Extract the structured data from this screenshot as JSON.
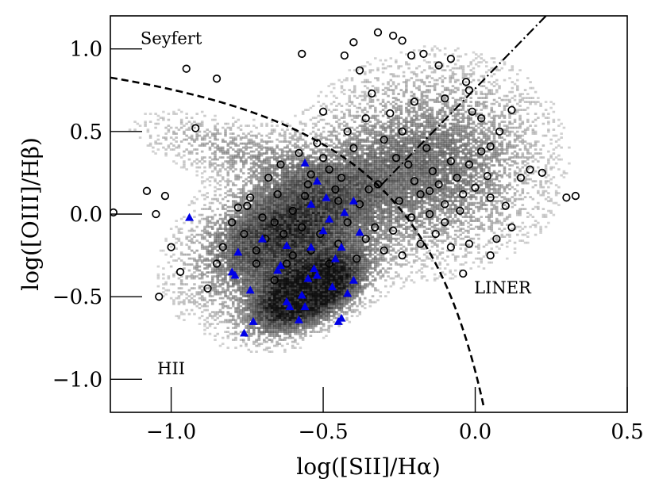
{
  "chart_data": {
    "type": "scatter",
    "title": "",
    "xlabel": "log([SII]/Hα)",
    "ylabel": "log([OIII]/Hβ)",
    "xlim": [
      -1.2,
      0.5
    ],
    "ylim": [
      -1.2,
      1.2
    ],
    "xticks": [
      -1.0,
      -0.5,
      0.0,
      0.5
    ],
    "xtick_labels": [
      "−1.0",
      "−0.5",
      "0.0",
      "0.5"
    ],
    "yticks": [
      -1.0,
      -0.5,
      0.0,
      0.5,
      1.0
    ],
    "ytick_labels": [
      "−1.0",
      "−0.5",
      "0.0",
      "0.5",
      "1.0"
    ],
    "grid": false,
    "legend": "none",
    "region_labels": [
      {
        "text": "Seyfert",
        "x": -1.0,
        "y": 1.03
      },
      {
        "text": "LINER",
        "x": 0.09,
        "y": -0.48
      },
      {
        "text": "HII",
        "x": -1.0,
        "y": -0.97
      }
    ],
    "background_density": {
      "description": "grey 2D histogram of the parent sample",
      "color": "#000000"
    },
    "curves": [
      {
        "kind": "dashed",
        "label": "",
        "equation": "y = 0.72/(x - 0.32) + 1.30",
        "x_range": [
          -1.2,
          0.03
        ]
      },
      {
        "kind": "dashdot",
        "label": "",
        "equation": "y = 1.89x + 0.76",
        "x_range": [
          -0.31,
          0.5
        ]
      }
    ],
    "series": [
      {
        "marker": "circle-open",
        "color": "#000000",
        "points": [
          [
            -1.0,
            -0.2
          ],
          [
            -0.95,
            0.88
          ],
          [
            -0.92,
            0.52
          ],
          [
            -0.85,
            0.82
          ],
          [
            -0.57,
            0.97
          ],
          [
            -0.43,
            0.96
          ],
          [
            -0.4,
            1.04
          ],
          [
            -0.32,
            1.1
          ],
          [
            -0.27,
            1.08
          ],
          [
            -0.24,
            1.05
          ],
          [
            -0.21,
            0.96
          ],
          [
            -0.17,
            0.97
          ],
          [
            -0.12,
            0.9
          ],
          [
            -0.08,
            0.94
          ],
          [
            -0.03,
            0.8
          ],
          [
            -0.02,
            0.75
          ],
          [
            -0.01,
            0.62
          ],
          [
            0.02,
            0.58
          ],
          [
            0.05,
            0.41
          ],
          [
            0.08,
            0.5
          ],
          [
            0.12,
            0.63
          ],
          [
            0.15,
            0.22
          ],
          [
            0.18,
            0.27
          ],
          [
            0.22,
            0.25
          ],
          [
            0.3,
            0.1
          ],
          [
            0.33,
            0.11
          ],
          [
            0.1,
            0.05
          ],
          [
            0.12,
            -0.08
          ],
          [
            0.07,
            -0.15
          ],
          [
            0.05,
            -0.25
          ],
          [
            -0.02,
            -0.18
          ],
          [
            -0.04,
            -0.36
          ],
          [
            -0.08,
            -0.2
          ],
          [
            -1.19,
            0.01
          ],
          [
            -1.05,
            0.0
          ],
          [
            -1.04,
            -0.5
          ],
          [
            -1.02,
            0.11
          ],
          [
            -1.08,
            0.14
          ],
          [
            -0.97,
            -0.35
          ],
          [
            -0.88,
            -0.45
          ],
          [
            -0.85,
            -0.3
          ],
          [
            -0.83,
            -0.2
          ],
          [
            -0.8,
            -0.05
          ],
          [
            -0.78,
            0.04
          ],
          [
            -0.76,
            -0.12
          ],
          [
            -0.74,
            0.1
          ],
          [
            -0.72,
            -0.3
          ],
          [
            -0.7,
            -0.02
          ],
          [
            -0.68,
            0.22
          ],
          [
            -0.66,
            -0.4
          ],
          [
            -0.64,
            0.3
          ],
          [
            -0.62,
            -0.3
          ],
          [
            -0.6,
            0.02
          ],
          [
            -0.58,
            0.37
          ],
          [
            -0.56,
            0.11
          ],
          [
            -0.54,
            0.24
          ],
          [
            -0.52,
            0.43
          ],
          [
            -0.5,
            0.34
          ],
          [
            -0.48,
            0.27
          ],
          [
            -0.46,
            0.15
          ],
          [
            -0.44,
            0.22
          ],
          [
            -0.42,
            0.5
          ],
          [
            -0.4,
            0.4
          ],
          [
            -0.38,
            0.06
          ],
          [
            -0.36,
            0.58
          ],
          [
            -0.34,
            0.73
          ],
          [
            -0.32,
            0.18
          ],
          [
            -0.3,
            0.45
          ],
          [
            -0.28,
            0.61
          ],
          [
            -0.26,
            0.34
          ],
          [
            -0.24,
            0.5
          ],
          [
            -0.22,
            0.3
          ],
          [
            -0.2,
            0.2
          ],
          [
            -0.18,
            0.12
          ],
          [
            -0.16,
            0.4
          ],
          [
            -0.14,
            0.26
          ],
          [
            -0.12,
            0.18
          ],
          [
            -0.1,
            0.06
          ],
          [
            -0.08,
            0.32
          ],
          [
            -0.06,
            0.22
          ],
          [
            -0.04,
            0.12
          ],
          [
            -0.02,
            0.3
          ],
          [
            0.0,
            0.16
          ],
          [
            0.02,
            0.38
          ],
          [
            0.04,
            0.23
          ],
          [
            -0.1,
            -0.05
          ],
          [
            -0.13,
            -0.12
          ],
          [
            -0.15,
            0.0
          ],
          [
            -0.18,
            -0.18
          ],
          [
            -0.21,
            -0.02
          ],
          [
            -0.24,
            -0.25
          ],
          [
            -0.27,
            -0.1
          ],
          [
            -0.3,
            -0.22
          ],
          [
            -0.33,
            -0.08
          ],
          [
            -0.36,
            -0.15
          ],
          [
            -0.39,
            -0.27
          ],
          [
            -0.42,
            -0.05
          ],
          [
            -0.45,
            -0.18
          ],
          [
            -0.48,
            -0.3
          ],
          [
            -0.51,
            -0.12
          ],
          [
            -0.54,
            -0.22
          ],
          [
            -0.57,
            -0.08
          ],
          [
            -0.6,
            -0.25
          ],
          [
            -0.63,
            -0.12
          ],
          [
            -0.66,
            -0.05
          ],
          [
            -0.69,
            -0.15
          ],
          [
            -0.72,
            -0.22
          ],
          [
            -0.75,
            0.05
          ],
          [
            -0.65,
            0.12
          ],
          [
            -0.55,
            0.18
          ],
          [
            -0.45,
            0.08
          ],
          [
            -0.35,
            0.15
          ],
          [
            -0.25,
            0.08
          ],
          [
            -0.15,
            0.14
          ],
          [
            -0.05,
            0.02
          ],
          [
            0.05,
            0.1
          ],
          [
            -0.2,
            0.68
          ],
          [
            -0.38,
            0.87
          ],
          [
            -0.1,
            0.7
          ],
          [
            -0.5,
            0.62
          ]
        ]
      },
      {
        "marker": "triangle-filled",
        "color": "#0000e6",
        "points": [
          [
            -0.94,
            -0.02
          ],
          [
            -0.8,
            -0.35
          ],
          [
            -0.78,
            -0.23
          ],
          [
            -0.76,
            -0.72
          ],
          [
            -0.74,
            -0.46
          ],
          [
            -0.73,
            -0.65
          ],
          [
            -0.7,
            -0.15
          ],
          [
            -0.64,
            -0.31
          ],
          [
            -0.62,
            -0.53
          ],
          [
            -0.61,
            -0.56
          ],
          [
            -0.58,
            -0.64
          ],
          [
            -0.57,
            -0.49
          ],
          [
            -0.56,
            -0.56
          ],
          [
            -0.55,
            -0.39
          ],
          [
            -0.54,
            -0.2
          ],
          [
            -0.53,
            -0.33
          ],
          [
            -0.52,
            -0.37
          ],
          [
            -0.5,
            -0.1
          ],
          [
            -0.48,
            -0.03
          ],
          [
            -0.47,
            -0.44
          ],
          [
            -0.46,
            -0.27
          ],
          [
            -0.45,
            -0.65
          ],
          [
            -0.44,
            -0.63
          ],
          [
            -0.42,
            -0.48
          ],
          [
            -0.4,
            -0.4
          ],
          [
            -0.4,
            0.08
          ],
          [
            -0.43,
            0.01
          ],
          [
            -0.49,
            0.1
          ],
          [
            -0.52,
            0.2
          ],
          [
            -0.56,
            0.31
          ],
          [
            -0.54,
            0.06
          ],
          [
            -0.62,
            -0.19
          ],
          [
            -0.65,
            -0.34
          ],
          [
            -0.79,
            -0.37
          ],
          [
            -0.44,
            -0.2
          ],
          [
            -0.38,
            -0.11
          ]
        ]
      }
    ]
  }
}
